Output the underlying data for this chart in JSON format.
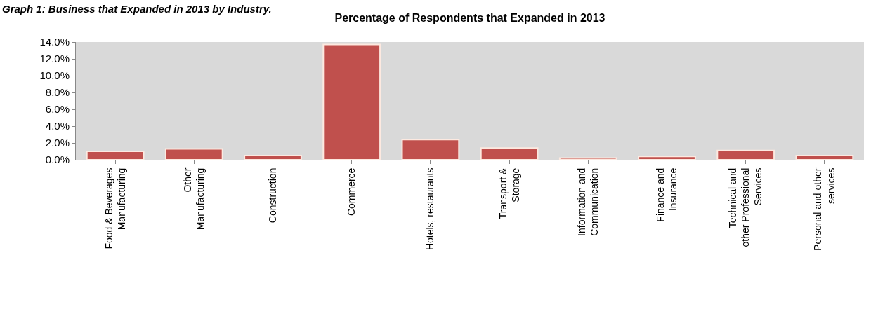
{
  "chart_data": {
    "type": "bar",
    "title": "Percentage of Respondents that Expanded in 2013",
    "annotations": [
      "Graph 1: Business that Expanded in 2013 by Industry."
    ],
    "categories": [
      "Food & Beverages\nManufacturing",
      "Other\nManufacturing",
      "Construction",
      "Commerce",
      "Hotels, restaurants",
      "Transport &\nStorage",
      "Information and\nCommunication",
      "Finance and\nInsurance",
      "Technical and\nother Professional\nServices",
      "Personal and other\nservices"
    ],
    "values": [
      1.0,
      1.3,
      0.5,
      13.7,
      2.4,
      1.4,
      0.2,
      0.4,
      1.1,
      0.5
    ],
    "color": "#c0504d",
    "ylim": [
      0,
      14
    ],
    "yticks": [
      {
        "value": 0,
        "label": "0.0%"
      },
      {
        "value": 2,
        "label": "2.0%"
      },
      {
        "value": 4,
        "label": "4.0%"
      },
      {
        "value": 6,
        "label": "6.0%"
      },
      {
        "value": 8,
        "label": "8.0%"
      },
      {
        "value": 10,
        "label": "10.0%"
      },
      {
        "value": 12,
        "label": "12.0%"
      },
      {
        "value": 14,
        "label": "14.0%"
      }
    ],
    "grid": false
  }
}
